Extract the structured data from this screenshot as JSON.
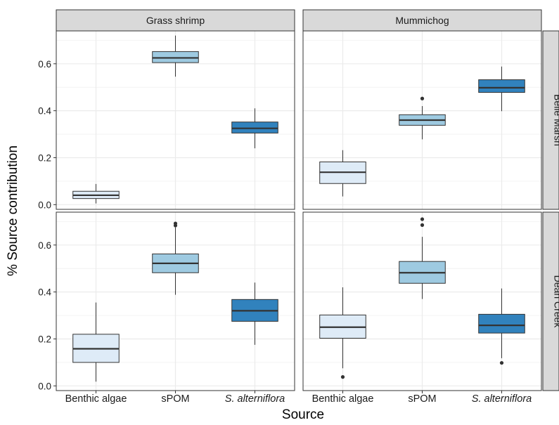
{
  "chart_data": {
    "type": "boxplot",
    "xlabel": "Source",
    "ylabel": "% Source contribution",
    "ylim": [
      -0.02,
      0.74
    ],
    "yticks": [
      "0.0",
      "0.2",
      "0.4",
      "0.6"
    ],
    "grid": true,
    "facet_columns": [
      "Grass shrimp",
      "Mummichog"
    ],
    "facet_rows": [
      "Belle Marsh",
      "Dean Creek"
    ],
    "categories": [
      "Benthic algae",
      "sPOM",
      "S. alterniflora"
    ],
    "colors": {
      "Benthic algae": "#deebf7",
      "sPOM": "#9ecae1",
      "S. alterniflora": "#3182bd",
      "strip_bg": "#d9d9d9",
      "panel_border": "#333333",
      "grid": "#ebebeb"
    },
    "panels": [
      {
        "column": "Grass shrimp",
        "row": "Belle Marsh",
        "boxes": [
          {
            "category": "Benthic algae",
            "min": 0.005,
            "q1": 0.026,
            "median": 0.04,
            "q3": 0.057,
            "max": 0.088,
            "outliers": []
          },
          {
            "category": "sPOM",
            "min": 0.545,
            "q1": 0.605,
            "median": 0.625,
            "q3": 0.652,
            "max": 0.72,
            "outliers": []
          },
          {
            "category": "S. alterniflora",
            "min": 0.24,
            "q1": 0.305,
            "median": 0.325,
            "q3": 0.352,
            "max": 0.41,
            "outliers": []
          }
        ]
      },
      {
        "column": "Mummichog",
        "row": "Belle Marsh",
        "boxes": [
          {
            "category": "Benthic algae",
            "min": 0.035,
            "q1": 0.09,
            "median": 0.138,
            "q3": 0.182,
            "max": 0.232,
            "outliers": []
          },
          {
            "category": "sPOM",
            "min": 0.278,
            "q1": 0.338,
            "median": 0.36,
            "q3": 0.383,
            "max": 0.42,
            "outliers": [
              0.452
            ]
          },
          {
            "category": "S. alterniflora",
            "min": 0.398,
            "q1": 0.478,
            "median": 0.498,
            "q3": 0.532,
            "max": 0.588,
            "outliers": []
          }
        ]
      },
      {
        "column": "Grass shrimp",
        "row": "Dean Creek",
        "boxes": [
          {
            "category": "Benthic algae",
            "min": 0.018,
            "q1": 0.1,
            "median": 0.158,
            "q3": 0.22,
            "max": 0.355,
            "outliers": []
          },
          {
            "category": "sPOM",
            "min": 0.388,
            "q1": 0.482,
            "median": 0.522,
            "q3": 0.562,
            "max": 0.675,
            "outliers": [
              0.683,
              0.692
            ]
          },
          {
            "category": "S. alterniflora",
            "min": 0.175,
            "q1": 0.275,
            "median": 0.32,
            "q3": 0.368,
            "max": 0.44,
            "outliers": []
          }
        ]
      },
      {
        "column": "Mummichog",
        "row": "Dean Creek",
        "boxes": [
          {
            "category": "Benthic algae",
            "min": 0.075,
            "q1": 0.203,
            "median": 0.25,
            "q3": 0.302,
            "max": 0.42,
            "outliers": [
              0.038
            ]
          },
          {
            "category": "sPOM",
            "min": 0.37,
            "q1": 0.437,
            "median": 0.482,
            "q3": 0.53,
            "max": 0.635,
            "outliers": [
              0.685,
              0.71
            ]
          },
          {
            "category": "S. alterniflora",
            "min": 0.118,
            "q1": 0.225,
            "median": 0.258,
            "q3": 0.305,
            "max": 0.415,
            "outliers": [
              0.098
            ]
          }
        ]
      }
    ]
  }
}
